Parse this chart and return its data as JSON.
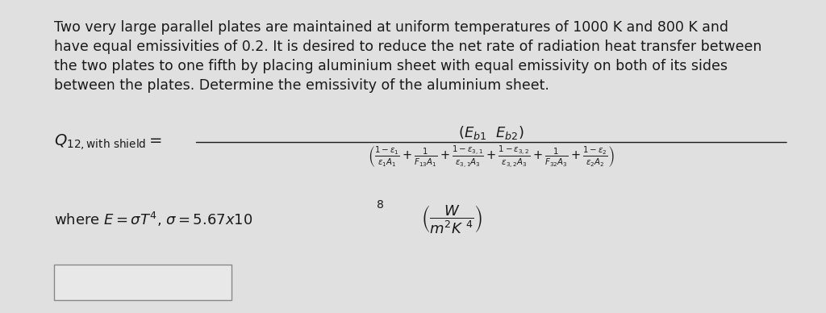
{
  "bg_color": "#e0e0e0",
  "text_color": "#1a1a1a",
  "paragraph_lines": [
    "Two very large parallel plates are maintained at uniform temperatures of 1000 K and 800 K and",
    "have equal emissivities of 0.2. It is desired to reduce the net rate of radiation heat transfer between",
    "the two plates to one fifth by placing aluminium sheet with equal emissivity on both of its sides",
    "between the plates. Determine the emissivity of the aluminium sheet."
  ],
  "formula_label": "$Q_{12,\\mathrm{with\\ shield}}=$",
  "numerator": "$(E_{b1}\\ \\ E_{b2})$",
  "denominator_parts": [
    "$\\left(\\frac{1-\\varepsilon_1}{\\varepsilon_1 A_1}+\\frac{1}{F_{13}A_1}+\\frac{1-\\varepsilon_{3,1}}{\\varepsilon_{3,1}A_3}+\\frac{1-\\varepsilon_{3,2}}{\\varepsilon_{3,2}A_3}+\\frac{1}{F_{32}A_3}+\\frac{1-\\varepsilon_2}{\\varepsilon_2 A_2}\\right)$"
  ],
  "where_text": "where $E=\\sigma T^4$, $\\sigma = 5.67x10$ ${}^8$",
  "where_frac": "$\\left(\\dfrac{W}{m^2K\\ {}^4}\\right)$",
  "box_color": "#e8e8e8",
  "box_edge": "#888888",
  "para_fontsize": 12.5,
  "formula_fontsize": 14,
  "denom_fontsize": 10.5,
  "where_fontsize": 13
}
